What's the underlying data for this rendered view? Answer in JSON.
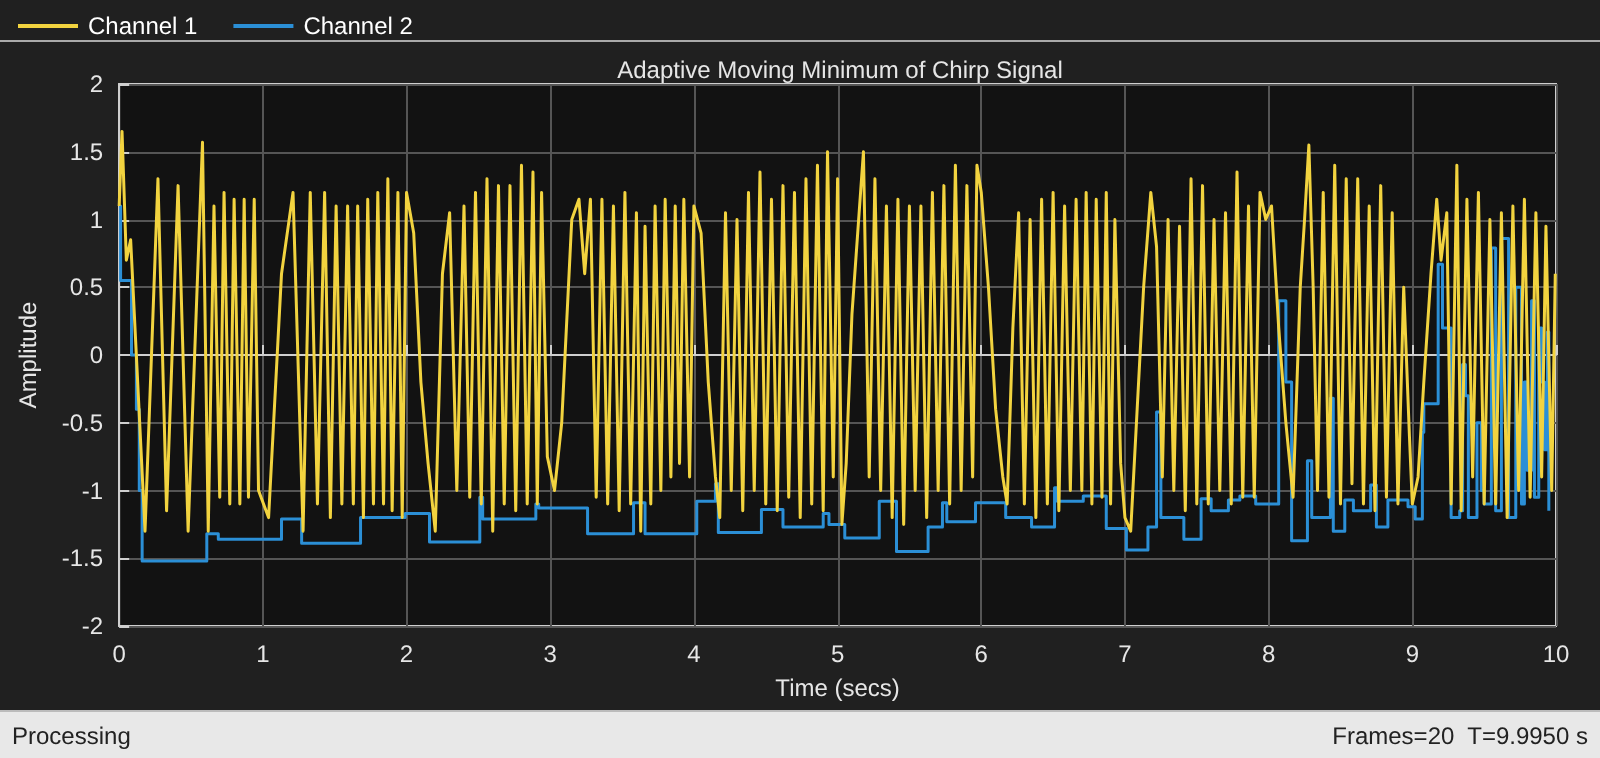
{
  "chart_data": {
    "type": "line",
    "title": "Adaptive Moving Minimum of Chirp Signal",
    "xlabel": "Time (secs)",
    "ylabel": "Amplitude",
    "xlim": [
      0,
      10
    ],
    "xticks": [
      0,
      1,
      2,
      3,
      4,
      5,
      6,
      7,
      8,
      9,
      10
    ],
    "ylim": [
      -2,
      2
    ],
    "yticks": [
      -2,
      -1.5,
      -1,
      -0.5,
      0,
      0.5,
      1,
      1.5,
      2
    ],
    "grid": true,
    "legend": "top left",
    "marker": "none",
    "line_style": "solid",
    "annotations": [
      "Processing",
      "Frames=20  T=9.9950 s"
    ],
    "series": [
      {
        "name": "Channel 1",
        "color": "#f2d33f",
        "type": "line",
        "x": [
          0,
          0.02,
          0.05,
          0.08,
          0.18,
          0.27,
          0.33,
          0.41,
          0.48,
          0.58,
          0.62,
          0.66,
          0.7,
          0.73,
          0.77,
          0.8,
          0.84,
          0.87,
          0.9,
          0.94,
          0.97,
          1.04,
          1.13,
          1.21,
          1.28,
          1.33,
          1.38,
          1.43,
          1.47,
          1.51,
          1.55,
          1.59,
          1.63,
          1.66,
          1.7,
          1.73,
          1.77,
          1.8,
          1.84,
          1.87,
          1.9,
          1.94,
          1.97,
          2.0,
          2.05,
          2.1,
          2.15,
          2.2,
          2.25,
          2.3,
          2.35,
          2.4,
          2.44,
          2.48,
          2.52,
          2.56,
          2.6,
          2.64,
          2.68,
          2.72,
          2.76,
          2.8,
          2.84,
          2.88,
          2.91,
          2.94,
          2.98,
          3.03,
          3.08,
          3.15,
          3.2,
          3.24,
          3.28,
          3.32,
          3.36,
          3.4,
          3.44,
          3.48,
          3.52,
          3.56,
          3.6,
          3.63,
          3.66,
          3.7,
          3.73,
          3.77,
          3.8,
          3.84,
          3.87,
          3.9,
          3.93,
          3.97,
          4.0,
          4.05,
          4.1,
          4.15,
          4.18,
          4.22,
          4.26,
          4.3,
          4.34,
          4.38,
          4.42,
          4.46,
          4.5,
          4.54,
          4.58,
          4.62,
          4.66,
          4.7,
          4.74,
          4.78,
          4.82,
          4.86,
          4.9,
          4.93,
          4.97,
          5.0,
          5.03,
          5.06,
          5.1,
          5.14,
          5.18,
          5.22,
          5.26,
          5.3,
          5.34,
          5.38,
          5.42,
          5.46,
          5.5,
          5.54,
          5.58,
          5.62,
          5.66,
          5.7,
          5.74,
          5.78,
          5.82,
          5.86,
          5.9,
          5.94,
          5.97,
          6.0,
          6.05,
          6.1,
          6.15,
          6.18,
          6.22,
          6.26,
          6.3,
          6.34,
          6.38,
          6.42,
          6.46,
          6.5,
          6.54,
          6.58,
          6.62,
          6.66,
          6.7,
          6.73,
          6.77,
          6.8,
          6.84,
          6.87,
          6.9,
          6.93,
          6.97,
          7.0,
          7.04,
          7.08,
          7.13,
          7.18,
          7.22,
          7.26,
          7.3,
          7.34,
          7.38,
          7.42,
          7.46,
          7.5,
          7.54,
          7.58,
          7.62,
          7.66,
          7.7,
          7.74,
          7.78,
          7.82,
          7.86,
          7.9,
          7.94,
          7.98,
          8.02,
          8.07,
          8.12,
          8.17,
          8.22,
          8.25,
          8.28,
          8.31,
          8.34,
          8.38,
          8.42,
          8.46,
          8.5,
          8.54,
          8.58,
          8.62,
          8.66,
          8.7,
          8.74,
          8.78,
          8.82,
          8.86,
          8.9,
          8.94,
          8.98,
          9.0,
          9.04,
          9.08,
          9.13,
          9.17,
          9.2,
          9.24,
          9.27,
          9.31,
          9.34,
          9.38,
          9.42,
          9.46,
          9.5,
          9.54,
          9.58,
          9.62,
          9.66,
          9.7,
          9.74,
          9.78,
          9.82,
          9.86,
          9.9,
          9.93,
          9.97,
          9.995
        ],
        "values": [
          1.1,
          1.65,
          0.7,
          0.85,
          -1.3,
          1.3,
          -1.15,
          1.25,
          -1.3,
          1.57,
          -1.3,
          1.1,
          -1.05,
          1.2,
          -1.1,
          1.15,
          -1.1,
          1.15,
          -1.05,
          1.15,
          -1.0,
          -1.2,
          0.6,
          1.2,
          -1.3,
          1.2,
          -1.1,
          1.2,
          -1.2,
          1.1,
          -1.1,
          1.1,
          -1.1,
          1.1,
          -1.2,
          1.15,
          -1.1,
          1.2,
          -1.1,
          1.3,
          -1.15,
          1.2,
          -1.2,
          1.2,
          0.9,
          -0.2,
          -0.8,
          -1.3,
          0.6,
          1.05,
          -1.0,
          1.1,
          -1.05,
          1.2,
          -1.1,
          1.3,
          -1.3,
          1.25,
          -1.1,
          1.25,
          -1.15,
          1.4,
          -1.1,
          1.35,
          -1.1,
          1.2,
          -0.75,
          -1.0,
          -0.5,
          1.0,
          1.15,
          0.6,
          1.15,
          -1.05,
          1.15,
          -1.1,
          1.1,
          -1.15,
          1.2,
          -1.1,
          1.05,
          -1.3,
          0.95,
          -1.1,
          1.1,
          -1.0,
          1.15,
          -0.9,
          1.1,
          -0.8,
          1.15,
          -0.9,
          1.1,
          0.9,
          -0.2,
          -0.9,
          -1.2,
          1.05,
          -1.0,
          1.0,
          -1.15,
          1.2,
          -1.0,
          1.35,
          -1.1,
          1.15,
          -1.15,
          1.25,
          -1.05,
          1.2,
          -1.2,
          1.3,
          -1.1,
          1.4,
          -1.15,
          1.5,
          -0.9,
          1.3,
          -1.25,
          -0.8,
          0.3,
          0.9,
          1.5,
          -0.9,
          1.3,
          -1.0,
          1.1,
          -1.2,
          1.15,
          -1.25,
          1.1,
          -1.0,
          1.1,
          -1.2,
          1.2,
          -1.0,
          1.25,
          -1.1,
          1.4,
          -1.0,
          1.25,
          -0.9,
          1.4,
          1.2,
          0.5,
          -0.4,
          -0.9,
          -1.1,
          0.2,
          1.05,
          -1.1,
          1.0,
          -1.2,
          1.15,
          -1.1,
          1.2,
          -1.15,
          1.1,
          -1.0,
          1.15,
          -1.0,
          1.2,
          -1.1,
          1.15,
          -1.05,
          1.2,
          -1.1,
          1.0,
          -0.8,
          -1.2,
          -1.3,
          -0.5,
          0.5,
          1.2,
          0.8,
          -0.9,
          1.0,
          -1.0,
          0.95,
          -1.15,
          1.3,
          -1.1,
          1.25,
          -1.1,
          1.0,
          -1.0,
          1.05,
          -1.1,
          1.35,
          -1.05,
          1.1,
          -1.05,
          1.2,
          1.0,
          1.1,
          0.2,
          -0.5,
          -1.05,
          0.5,
          1.0,
          1.55,
          0.5,
          -1.0,
          1.2,
          -1.05,
          1.4,
          -1.1,
          1.3,
          -0.95,
          1.3,
          -1.1,
          1.1,
          -1.15,
          1.25,
          -1.05,
          1.05,
          -1.1,
          0.5,
          -0.6,
          -1.1,
          -0.9,
          -0.2,
          0.6,
          1.15,
          0.7,
          1.05,
          -1.1,
          1.4,
          -1.15,
          1.15,
          -0.9,
          1.2,
          -1.1,
          1.0,
          -1.1,
          1.05,
          -1.2,
          1.1,
          -1.0,
          1.15,
          -1.05,
          1.05,
          -0.9,
          0.95,
          -1.0,
          0.6
        ]
      },
      {
        "name": "Channel 2",
        "color": "#2b8fd6",
        "type": "step",
        "x": [
          0,
          0.01,
          0.086,
          0.12,
          0.14,
          0.16,
          0.61,
          0.69,
          1.13,
          1.27,
          1.68,
          1.99,
          2.16,
          2.51,
          2.53,
          2.9,
          2.92,
          3.26,
          3.58,
          3.66,
          4.02,
          4.15,
          4.17,
          4.47,
          4.62,
          4.9,
          4.94,
          5.05,
          5.29,
          5.41,
          5.63,
          5.73,
          5.76,
          5.96,
          6.17,
          6.35,
          6.51,
          6.53,
          6.71,
          6.87,
          7.01,
          7.16,
          7.22,
          7.25,
          7.41,
          7.53,
          7.6,
          7.72,
          7.8,
          7.91,
          8.07,
          8.12,
          8.16,
          8.27,
          8.3,
          8.43,
          8.45,
          8.53,
          8.59,
          8.71,
          8.75,
          8.83,
          8.97,
          9.02,
          9.07,
          9.08,
          9.18,
          9.21,
          9.27,
          9.33,
          9.35,
          9.37,
          9.39,
          9.45,
          9.48,
          9.5,
          9.55,
          9.58,
          9.62,
          9.67,
          9.72,
          9.76,
          9.78,
          9.8,
          9.83,
          9.85,
          9.88,
          9.9,
          9.92,
          9.94,
          9.95
        ],
        "values": [
          1.1,
          0.55,
          0.0,
          -0.4,
          -1.0,
          -1.52,
          -1.32,
          -1.36,
          -1.21,
          -1.39,
          -1.2,
          -1.17,
          -1.38,
          -1.05,
          -1.21,
          -1.1,
          -1.13,
          -1.32,
          -1.09,
          -1.32,
          -1.08,
          -0.95,
          -1.31,
          -1.14,
          -1.27,
          -1.17,
          -1.25,
          -1.35,
          -1.08,
          -1.45,
          -1.27,
          -1.09,
          -1.23,
          -1.09,
          -1.2,
          -1.27,
          -0.98,
          -1.08,
          -1.04,
          -1.28,
          -1.44,
          -1.27,
          -0.42,
          -1.2,
          -1.36,
          -1.06,
          -1.15,
          -1.07,
          -1.04,
          -1.1,
          0.4,
          -0.2,
          -1.37,
          -0.78,
          -1.2,
          -0.32,
          -1.3,
          -1.07,
          -1.15,
          -0.96,
          -1.27,
          -1.07,
          -1.12,
          -1.21,
          -0.57,
          -0.36,
          0.67,
          0.2,
          -1.2,
          -1.15,
          -0.07,
          -0.3,
          -1.2,
          -0.5,
          -1.0,
          -1.1,
          0.79,
          -1.15,
          0.86,
          -1.2,
          0.5,
          -1.1,
          -0.2,
          -0.85,
          0.4,
          -1.05,
          0.2,
          -0.2,
          -0.7,
          0.17,
          -1.15
        ]
      }
    ]
  }
}
